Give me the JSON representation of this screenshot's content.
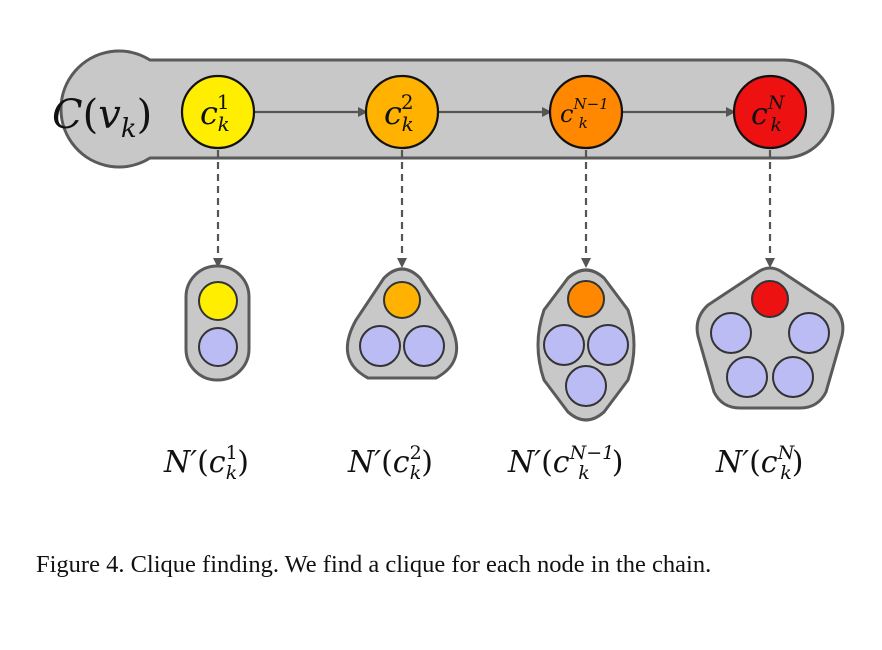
{
  "chain": {
    "label": {
      "main": "C",
      "open": "(",
      "var": "v",
      "sub": "k",
      "close": ")"
    },
    "nodes": [
      {
        "id": "c1",
        "base": "c",
        "sup": "1",
        "sub": "k",
        "color": "#ffee00"
      },
      {
        "id": "c2",
        "base": "c",
        "sup": "2",
        "sub": "k",
        "color": "#ffb300"
      },
      {
        "id": "cN1",
        "base": "c",
        "sup": "N−1",
        "sub": "k",
        "color": "#ff8800"
      },
      {
        "id": "cN",
        "base": "c",
        "sup": "N",
        "sub": "k",
        "color": "#ee1111"
      }
    ]
  },
  "cliques": [
    {
      "name": "N′",
      "arg_base": "c",
      "arg_sup": "1",
      "arg_sub": "k",
      "neighbor_count": 1
    },
    {
      "name": "N′",
      "arg_base": "c",
      "arg_sup": "2",
      "arg_sub": "k",
      "neighbor_count": 2
    },
    {
      "name": "N′",
      "arg_base": "c",
      "arg_sup": "N−1",
      "arg_sub": "k",
      "neighbor_count": 3
    },
    {
      "name": "N′",
      "arg_base": "c",
      "arg_sup": "N",
      "arg_sub": "k",
      "neighbor_count": 4
    }
  ],
  "colors": {
    "container_fill": "#c8c8c8",
    "container_stroke": "#5a5a5a",
    "neighbor_fill": "#bcbcf4",
    "arrow": "#555555"
  },
  "caption": "Figure 4. Clique finding.  We find a clique for each node in the chain."
}
